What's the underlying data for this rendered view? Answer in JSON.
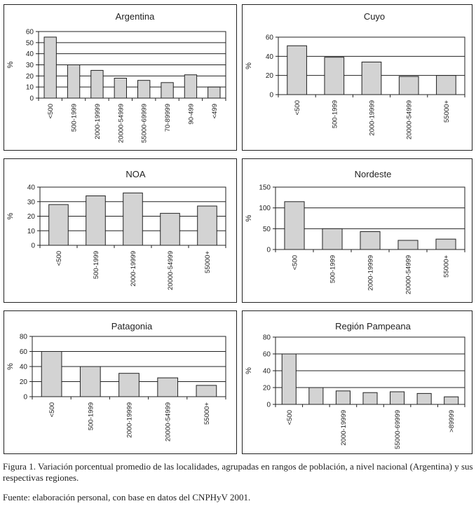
{
  "chart_data": [
    {
      "type": "bar",
      "title": "Argentina",
      "ylabel": "%",
      "xlabel": "",
      "ylim": [
        0,
        60
      ],
      "yticks": [
        0,
        10,
        20,
        30,
        40,
        50,
        60
      ],
      "categories": [
        "<500",
        "500-1999",
        "2000-19999",
        "20000-54999",
        "55000-69999",
        "70-89999",
        "90-499",
        "<499"
      ],
      "values": [
        55,
        30,
        25,
        18,
        16,
        14,
        21,
        10
      ]
    },
    {
      "type": "bar",
      "title": "Cuyo",
      "ylabel": "%",
      "xlabel": "",
      "ylim": [
        0,
        60
      ],
      "yticks": [
        0,
        20,
        40,
        60
      ],
      "categories": [
        "<500",
        "500-1999",
        "2000-19999",
        "20000-54999",
        "55000+"
      ],
      "values": [
        51,
        39,
        34,
        19,
        20
      ]
    },
    {
      "type": "bar",
      "title": "NOA",
      "ylabel": "%",
      "xlabel": "",
      "ylim": [
        0,
        40
      ],
      "yticks": [
        0,
        10,
        20,
        30,
        40
      ],
      "categories": [
        "<500",
        "500-1999",
        "2000-19999",
        "20000-54999",
        "55000+"
      ],
      "values": [
        28,
        34,
        36,
        22,
        27
      ]
    },
    {
      "type": "bar",
      "title": "Nordeste",
      "ylabel": "%",
      "xlabel": "",
      "ylim": [
        0,
        150
      ],
      "yticks": [
        0,
        50,
        100,
        150
      ],
      "categories": [
        "<500",
        "500-1999",
        "2000-19999",
        "20000-54999",
        "55000+"
      ],
      "values": [
        115,
        50,
        43,
        22,
        25
      ]
    },
    {
      "type": "bar",
      "title": "Patagonia",
      "ylabel": "%",
      "xlabel": "",
      "ylim": [
        0,
        80
      ],
      "yticks": [
        0,
        20,
        40,
        60,
        80
      ],
      "categories": [
        "<500",
        "500-1999",
        "2000-19999",
        "20000-54999",
        "55000+"
      ],
      "values": [
        60,
        40,
        31,
        25,
        15
      ]
    },
    {
      "type": "bar",
      "title": "Región Pampeana",
      "ylabel": "%",
      "xlabel": "",
      "ylim": [
        0,
        80
      ],
      "yticks": [
        0,
        20,
        40,
        60,
        80
      ],
      "categories": [
        "<500",
        "",
        "2000-19999",
        "",
        "55000-69999",
        "",
        ">89999"
      ],
      "values": [
        60,
        20,
        16,
        14,
        15,
        13,
        9
      ]
    }
  ],
  "caption": {
    "figure": "Figura 1. Variación porcentual promedio de las localidades, agrupadas en rangos de población, a nivel nacional (Argentina) y sus respectivas regiones.",
    "source": "Fuente: elaboración personal, con base en datos del CNPHyV 2001."
  },
  "colors": {
    "bar_fill": "#d3d3d3",
    "stroke": "#222222"
  }
}
